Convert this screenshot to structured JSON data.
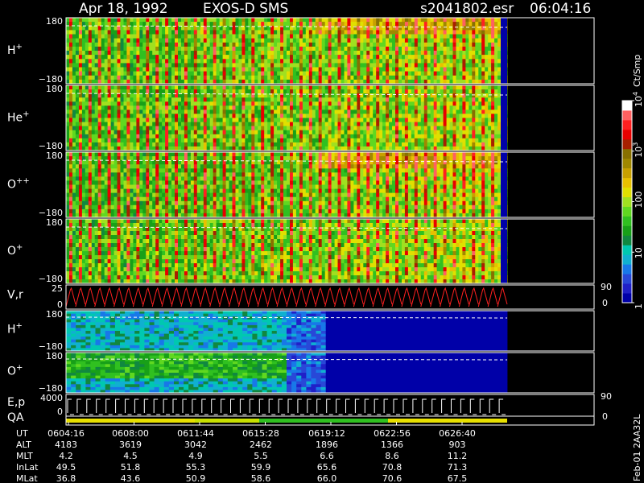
{
  "header": {
    "date": "Apr 18, 1992",
    "instrument": "EXOS-D SMS",
    "file": "s2041802.esr",
    "time": "06:04:16"
  },
  "colorbar": {
    "unit": "Ct/Smp",
    "ticks": [
      {
        "label": "1",
        "value": 1
      },
      {
        "label": "10",
        "value": 10
      },
      {
        "label": "100",
        "value": 100
      },
      {
        "label": "10",
        "exp": "3",
        "value": 1000
      },
      {
        "label": "10",
        "exp": "4",
        "value": 10000
      }
    ],
    "colors": [
      "#0000a8",
      "#2020c8",
      "#2848d8",
      "#1878e8",
      "#10b0d0",
      "#00c8b0",
      "#108840",
      "#18a018",
      "#30c020",
      "#60d820",
      "#a0e020",
      "#e0e000",
      "#e8c000",
      "#c8a000",
      "#a08800",
      "#887000",
      "#a82000",
      "#e80000",
      "#ff2020",
      "#ff6060",
      "#ffffff"
    ]
  },
  "chart_data": {
    "type": "heatmap",
    "panels": [
      {
        "label": "H",
        "sup": "+",
        "ymax": "180",
        "ymin": "−180"
      },
      {
        "label": "He",
        "sup": "+",
        "ymax": "180",
        "ymin": "−180"
      },
      {
        "label": "O",
        "sup": "++",
        "ymax": "180",
        "ymin": "−180"
      },
      {
        "label": "O",
        "sup": "+",
        "ymax": "180",
        "ymin": "−180"
      },
      {
        "label": "V,r",
        "sup": "",
        "ymax": "25",
        "ymin": "0",
        "right_top": "90",
        "right_bottom": "0"
      },
      {
        "label": "H",
        "sup": "+",
        "ymax": "180",
        "ymin": "−180"
      },
      {
        "label": "O",
        "sup": "+",
        "ymax": "180",
        "ymin": "−180"
      },
      {
        "label": "E,p",
        "sup": "",
        "ymax": "4000",
        "ymin": "0",
        "right_top": "90",
        "right_bottom": "0"
      },
      {
        "label": "QA",
        "sup": "",
        "ymax": "",
        "ymin": ""
      }
    ],
    "ephemeris": {
      "rows": [
        {
          "name": "UT",
          "values": [
            "0604:16",
            "0608:00",
            "0611:44",
            "0615:28",
            "0619:12",
            "0622:56",
            "0626:40"
          ]
        },
        {
          "name": "ALT",
          "values": [
            "4183",
            "3619",
            "3042",
            "2462",
            "1896",
            "1366",
            "903"
          ]
        },
        {
          "name": "MLT",
          "values": [
            "4.2",
            "4.5",
            "4.9",
            "5.5",
            "6.6",
            "8.6",
            "11.2"
          ]
        },
        {
          "name": "InLat",
          "values": [
            "49.5",
            "51.8",
            "55.3",
            "59.9",
            "65.6",
            "70.8",
            "71.3"
          ]
        },
        {
          "name": "MLat",
          "values": [
            "36.8",
            "43.6",
            "50.9",
            "58.6",
            "66.0",
            "70.6",
            "67.5"
          ]
        }
      ]
    },
    "footer": "Feb-01 2AA32L"
  }
}
